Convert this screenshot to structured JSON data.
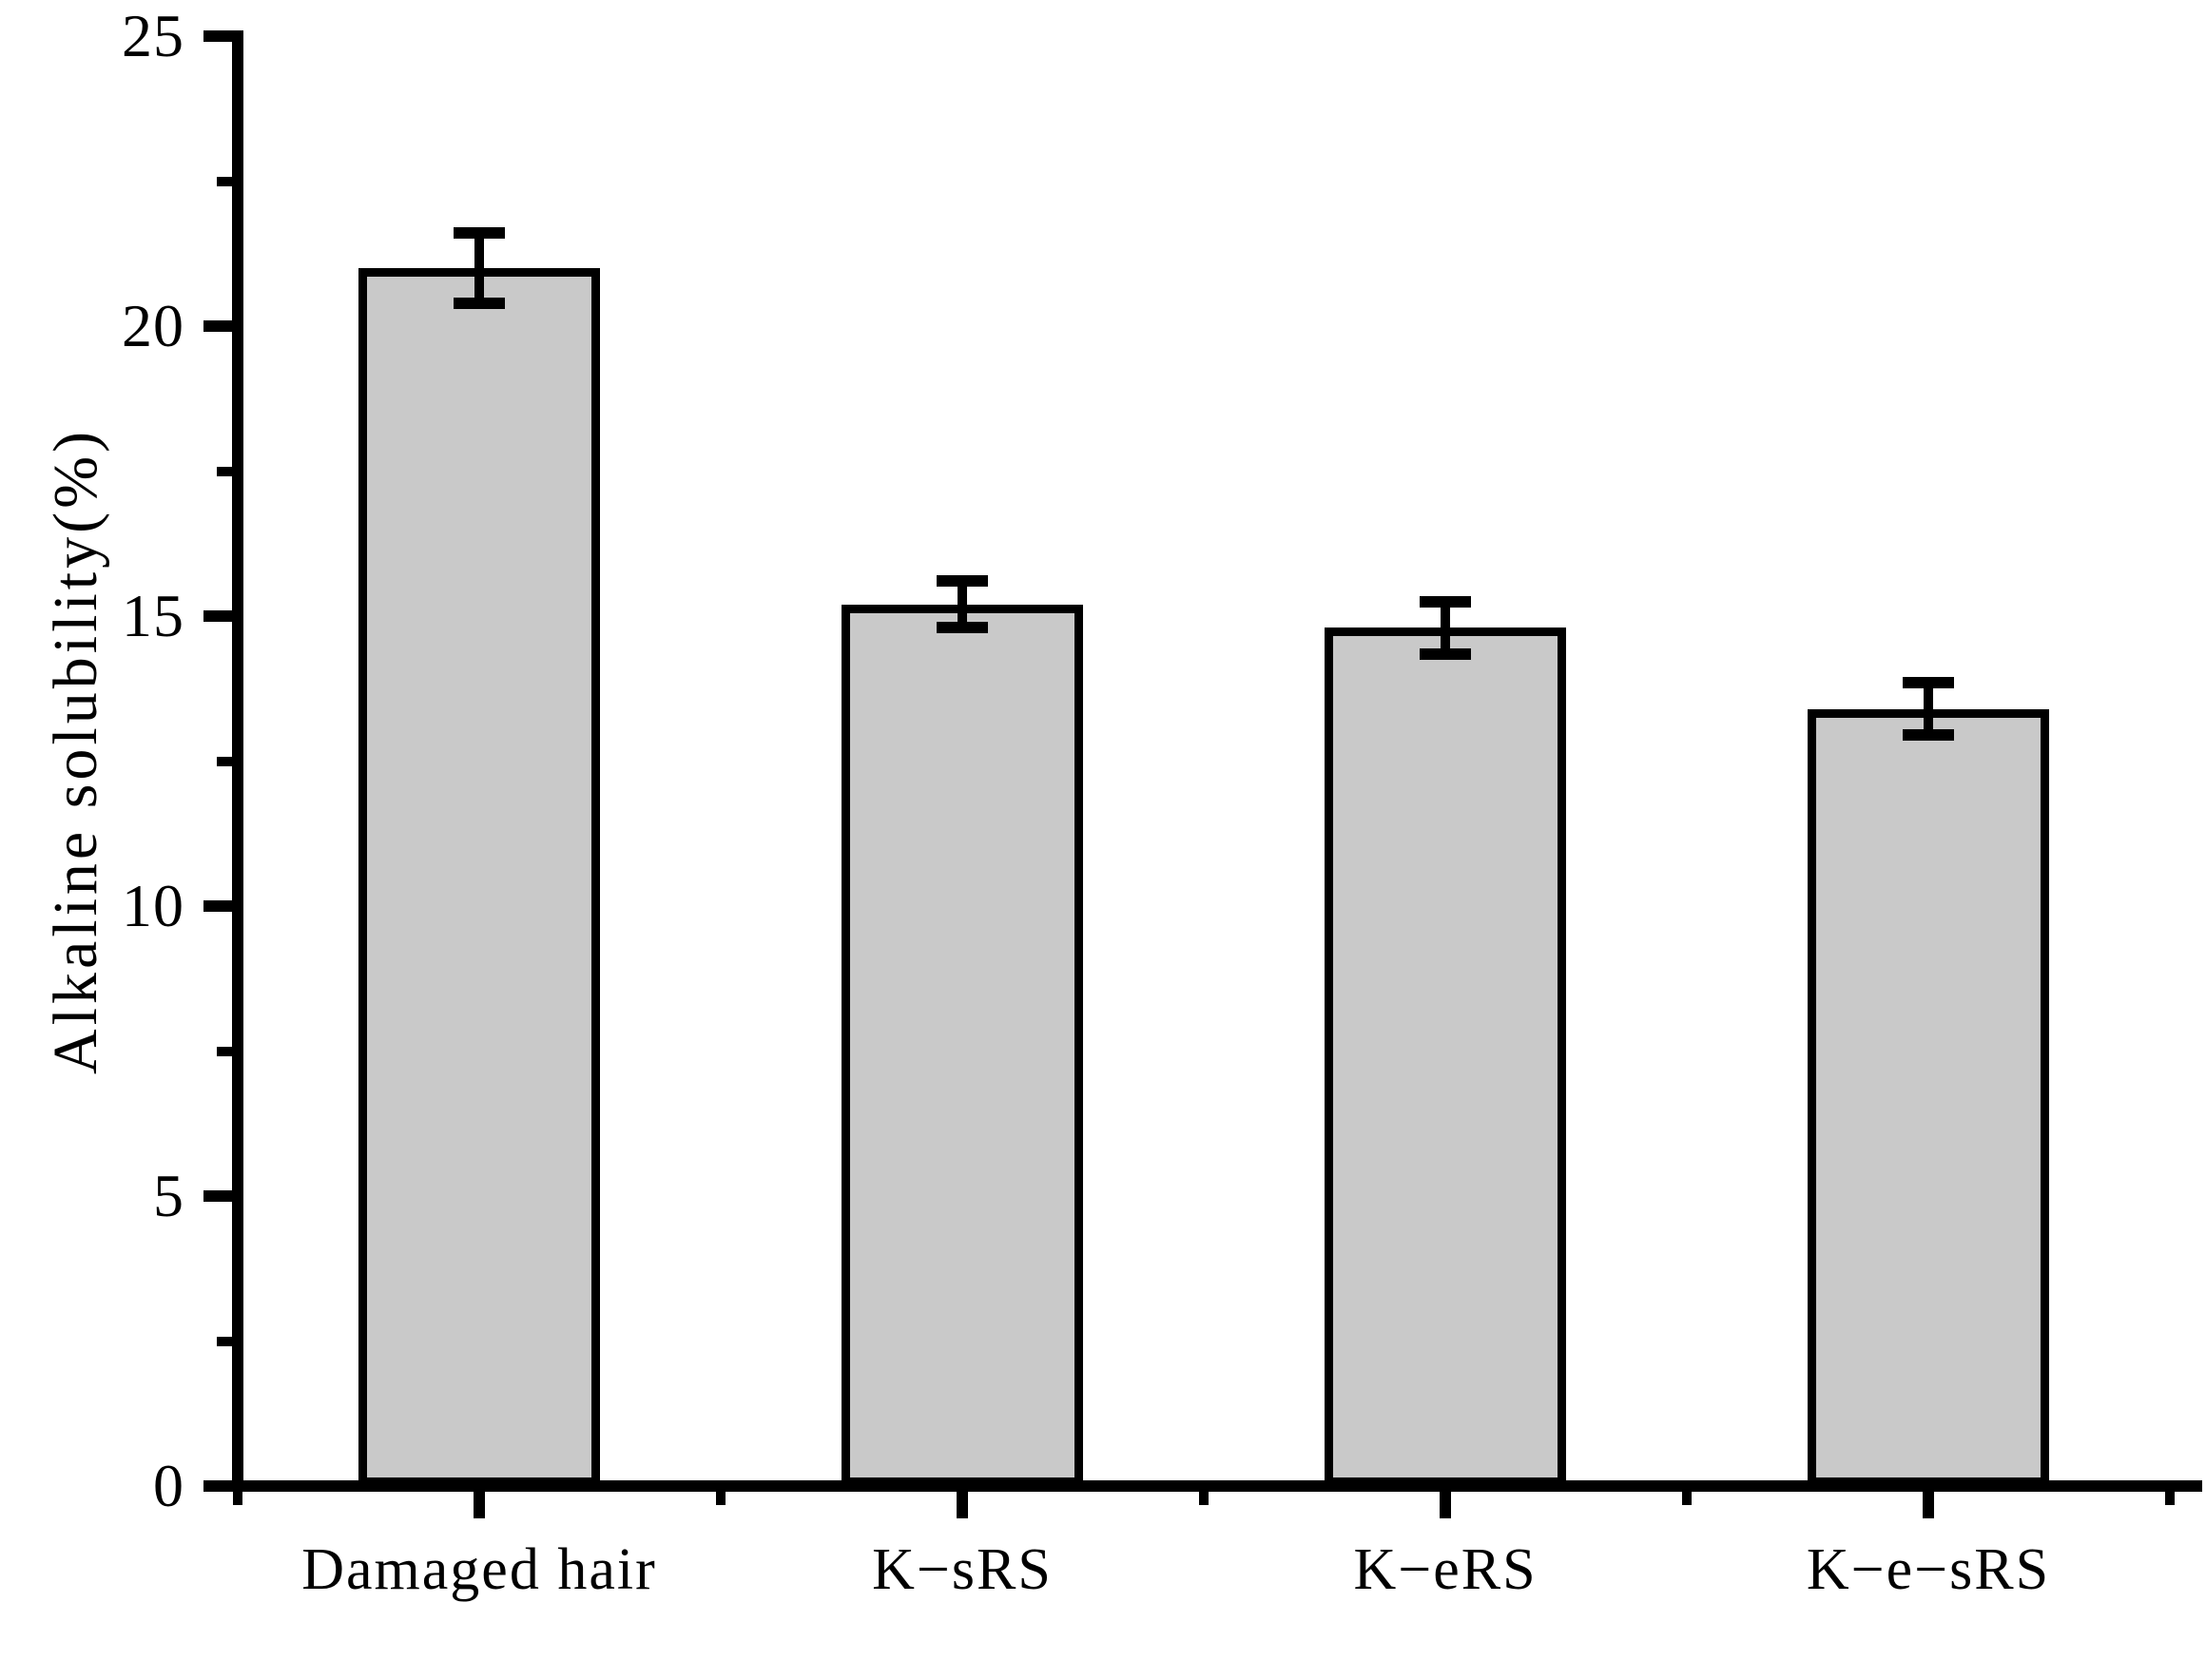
{
  "figure": {
    "background": "#ffffff"
  },
  "chart_data": {
    "type": "bar",
    "title": "",
    "categories": [
      "Damaged hair",
      "K−sRS",
      "K−eRS",
      "K−e−sRS"
    ],
    "values": [
      21.0,
      15.2,
      14.8,
      13.4
    ],
    "errors": [
      0.6,
      0.4,
      0.45,
      0.45
    ],
    "xlabel": "",
    "ylabel": "Alkaline solubility(%)",
    "ylim": [
      0,
      25
    ],
    "y_major_ticks": [
      0,
      5,
      10,
      15,
      20,
      25
    ],
    "y_major_tick_labels": [
      "0",
      "5",
      "10",
      "15",
      "20",
      "25"
    ],
    "y_minor_ticks": [
      2.5,
      7.5,
      12.5,
      17.5,
      22.5
    ],
    "grid": false,
    "legend": false,
    "error_bar_style": "cap-both-ends",
    "bar_fill_color": "#c9c9c9",
    "bar_edge_color": "#000000",
    "error_bar_color": "#000000",
    "axis_color": "#000000",
    "text_color": "#000000"
  }
}
